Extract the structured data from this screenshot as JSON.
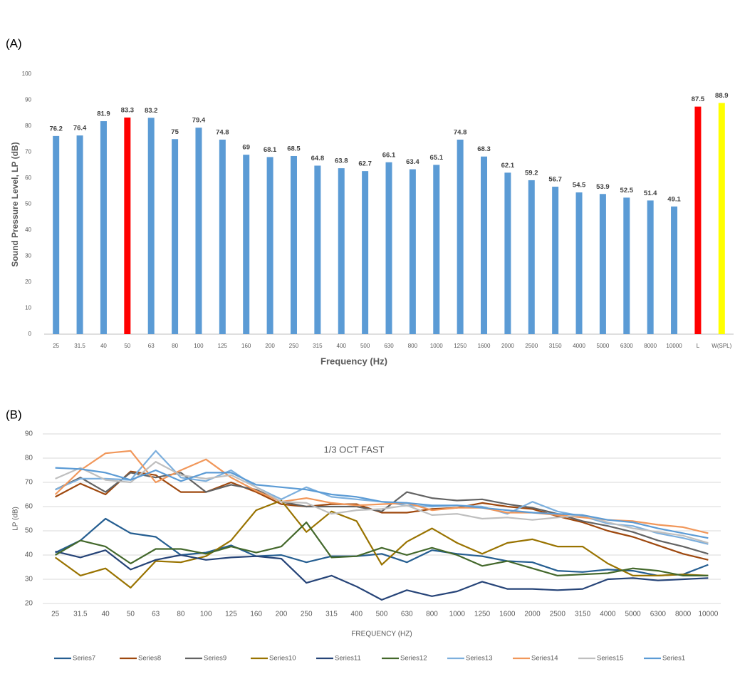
{
  "chart_data": [
    {
      "type": "bar",
      "panel_label": "(A)",
      "x_label": "Frequency (Hz)",
      "y_label": "Sound Pressure Level, LP (dB)",
      "categories": [
        "25",
        "31.5",
        "40",
        "50",
        "63",
        "80",
        "100",
        "125",
        "160",
        "200",
        "250",
        "315",
        "400",
        "500",
        "630",
        "800",
        "1000",
        "1250",
        "1600",
        "2000",
        "2500",
        "3150",
        "4000",
        "5000",
        "6300",
        "8000",
        "10000",
        "L",
        "W(SPL)"
      ],
      "values": [
        76.2,
        76.4,
        81.9,
        83.3,
        83.2,
        75,
        79.4,
        74.8,
        69,
        68.1,
        68.5,
        64.8,
        63.8,
        62.7,
        66.1,
        63.4,
        65.1,
        74.8,
        68.3,
        62.1,
        59.2,
        56.7,
        54.5,
        53.9,
        52.5,
        51.4,
        49.1,
        87.5,
        88.9
      ],
      "colors": [
        "#5b9bd5",
        "#5b9bd5",
        "#5b9bd5",
        "#ff0000",
        "#5b9bd5",
        "#5b9bd5",
        "#5b9bd5",
        "#5b9bd5",
        "#5b9bd5",
        "#5b9bd5",
        "#5b9bd5",
        "#5b9bd5",
        "#5b9bd5",
        "#5b9bd5",
        "#5b9bd5",
        "#5b9bd5",
        "#5b9bd5",
        "#5b9bd5",
        "#5b9bd5",
        "#5b9bd5",
        "#5b9bd5",
        "#5b9bd5",
        "#5b9bd5",
        "#5b9bd5",
        "#5b9bd5",
        "#5b9bd5",
        "#5b9bd5",
        "#ff0000",
        "#ffff00"
      ],
      "ylim": [
        0,
        100
      ],
      "yticks": [
        0,
        10,
        20,
        30,
        40,
        50,
        60,
        70,
        80,
        90,
        100
      ],
      "grid": false
    },
    {
      "type": "line",
      "panel_label": "(B)",
      "title": "1/3 OCT FAST",
      "x_label": "FREQUENCY  (HZ)",
      "y_label": "LP  (dB)",
      "categories": [
        "25",
        "31.5",
        "40",
        "50",
        "63",
        "80",
        "100",
        "125",
        "160",
        "200",
        "250",
        "315",
        "400",
        "500",
        "630",
        "800",
        "1000",
        "1250",
        "1600",
        "2000",
        "2500",
        "3150",
        "4000",
        "5000",
        "6300",
        "8000",
        "10000"
      ],
      "ylim": [
        20,
        90
      ],
      "yticks": [
        20,
        30,
        40,
        50,
        60,
        70,
        80,
        90
      ],
      "grid": true,
      "series": [
        {
          "name": "Series7",
          "color": "#255e91",
          "values": [
            41,
            46,
            55,
            49,
            47.5,
            40,
            41,
            44,
            39.5,
            40,
            37,
            39.5,
            39.5,
            40.5,
            37,
            42,
            40.5,
            39.5,
            37.5,
            37,
            33.5,
            33,
            34,
            33.5,
            31.5,
            32,
            36
          ]
        },
        {
          "name": "Series8",
          "color": "#9e480e",
          "values": [
            64,
            69.5,
            65,
            74.5,
            73,
            66,
            66,
            70,
            66,
            61,
            60,
            61,
            61,
            57.5,
            57.5,
            59,
            59.5,
            61.5,
            60,
            59,
            56,
            53.5,
            50,
            47.5,
            44,
            40.5,
            38
          ]
        },
        {
          "name": "Series9",
          "color": "#636363",
          "values": [
            67,
            72,
            66,
            74,
            72,
            74,
            66,
            69,
            67,
            62,
            60,
            60,
            60,
            58,
            66,
            63.5,
            62.5,
            63,
            61,
            59.5,
            57,
            54,
            52,
            49.5,
            46,
            43.5,
            40.5
          ]
        },
        {
          "name": "Series10",
          "color": "#997300",
          "values": [
            39,
            31.5,
            34.5,
            26.5,
            37.5,
            37,
            39.5,
            46,
            58.5,
            62.5,
            49.5,
            58,
            54,
            36,
            45.5,
            51,
            45,
            40.5,
            45,
            46.5,
            43.5,
            43.5,
            36.5,
            31.5,
            31.5,
            32,
            31.5
          ]
        },
        {
          "name": "Series11",
          "color": "#264478",
          "values": [
            41.5,
            39,
            42,
            34,
            38,
            40,
            38,
            39,
            39.5,
            38.5,
            28.5,
            31.5,
            27,
            21.5,
            25.5,
            23,
            25,
            29,
            26,
            26,
            25.5,
            26,
            30,
            30.5,
            29.5,
            30,
            30.5
          ]
        },
        {
          "name": "Series12",
          "color": "#43682b",
          "values": [
            40,
            46,
            43.5,
            36.5,
            42.5,
            42.5,
            40.5,
            43.5,
            41,
            43.5,
            53.5,
            39,
            39.5,
            43,
            40,
            43,
            40,
            35.5,
            37.5,
            34.5,
            31.5,
            32,
            32.5,
            34.5,
            33.5,
            31.5,
            31.5
          ]
        },
        {
          "name": "Series13",
          "color": "#7cafdd",
          "values": [
            67,
            71.5,
            71.5,
            71,
            83,
            72,
            70.5,
            75,
            68,
            63,
            68,
            64,
            63,
            62,
            60.5,
            60,
            60.5,
            60,
            57,
            62,
            58,
            56,
            53,
            52,
            49,
            47,
            44.5
          ]
        },
        {
          "name": "Series14",
          "color": "#f1975a",
          "values": [
            65,
            75,
            82,
            83,
            70,
            75,
            79.5,
            72,
            66.5,
            62,
            63.5,
            61.5,
            60.5,
            61,
            61.5,
            58.5,
            59.5,
            59.5,
            57.5,
            57.5,
            56.5,
            55.5,
            54.5,
            54,
            52.5,
            51.5,
            49
          ]
        },
        {
          "name": "Series15",
          "color": "#bfbfbf",
          "values": [
            71.5,
            76,
            71,
            70,
            78.5,
            73,
            71.5,
            73,
            68,
            62,
            61.5,
            57,
            58.5,
            59,
            60.5,
            56.5,
            57,
            55,
            55.5,
            54.5,
            55.5,
            56.5,
            53.5,
            51,
            49.5,
            48,
            45
          ]
        },
        {
          "name": "Series1",
          "color": "#5b9bd5",
          "values": [
            76,
            75.5,
            74,
            71,
            75,
            70.5,
            74,
            74,
            69,
            68,
            67,
            65,
            64,
            62,
            61.5,
            60.5,
            60.5,
            59.5,
            58.5,
            57.5,
            57,
            56.5,
            54.5,
            53.5,
            51,
            49,
            47
          ]
        }
      ]
    }
  ]
}
